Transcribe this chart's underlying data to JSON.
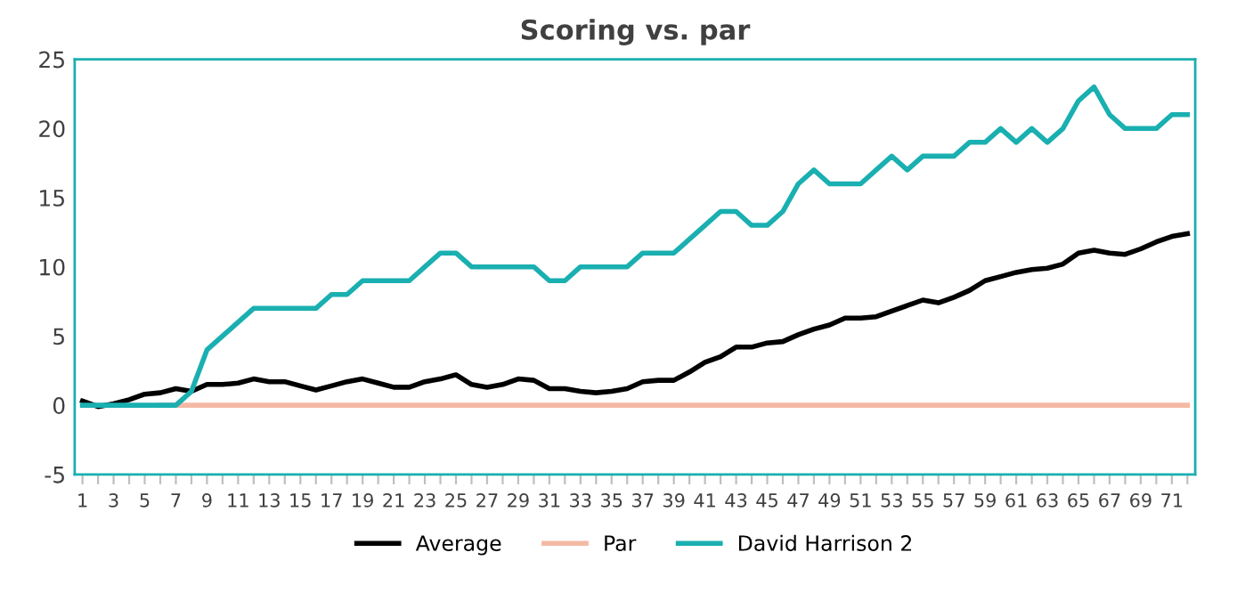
{
  "chart_data": {
    "type": "line",
    "title": "Scoring vs. par",
    "categories": [
      "1",
      null,
      "3",
      null,
      "5",
      null,
      "7",
      null,
      "9",
      null,
      "11",
      null,
      "13",
      null,
      "15",
      null,
      "17",
      null,
      "19",
      null,
      "21",
      null,
      "23",
      null,
      "25",
      null,
      "27",
      null,
      "29",
      null,
      "31",
      null,
      "33",
      null,
      "35",
      null,
      "37",
      null,
      "39",
      null,
      "41",
      null,
      "43",
      null,
      "45",
      null,
      "47",
      null,
      "49",
      null,
      "51",
      null,
      "53",
      null,
      "55",
      null,
      "57",
      null,
      "59",
      null,
      "61",
      null,
      "63",
      null,
      "65",
      null,
      "67",
      null,
      "69",
      null,
      "71",
      null
    ],
    "series": [
      {
        "name": "Average",
        "color": "#000000",
        "values": [
          0.3,
          -0.1,
          0.1,
          0.4,
          0.8,
          0.9,
          1.2,
          1.0,
          1.5,
          1.5,
          1.6,
          1.9,
          1.7,
          1.7,
          1.4,
          1.1,
          1.4,
          1.7,
          1.9,
          1.6,
          1.3,
          1.3,
          1.7,
          1.9,
          2.2,
          1.5,
          1.3,
          1.5,
          1.9,
          1.8,
          1.2,
          1.2,
          1.0,
          0.9,
          1.0,
          1.2,
          1.7,
          1.8,
          1.8,
          2.4,
          3.1,
          3.5,
          4.2,
          4.2,
          4.5,
          4.6,
          5.1,
          5.5,
          5.8,
          6.3,
          6.3,
          6.4,
          6.8,
          7.2,
          7.6,
          7.4,
          7.8,
          8.3,
          9.0,
          9.3,
          9.6,
          9.8,
          9.9,
          10.2,
          11.0,
          11.2,
          11.0,
          10.9,
          11.3,
          11.8,
          12.2,
          12.4
        ]
      },
      {
        "name": "Par",
        "color": "#f4b9a4",
        "values": [
          null,
          null,
          null,
          null,
          null,
          0,
          0,
          0,
          0,
          0,
          0,
          0,
          0,
          0,
          0,
          0,
          0,
          0,
          0,
          0,
          0,
          0,
          0,
          0,
          0,
          0,
          0,
          0,
          0,
          0,
          0,
          0,
          0,
          0,
          0,
          0,
          0,
          0,
          0,
          0,
          0,
          0,
          0,
          0,
          0,
          0,
          0,
          0,
          0,
          0,
          0,
          0,
          0,
          0,
          0,
          0,
          0,
          0,
          0,
          0,
          0,
          0,
          0,
          0,
          0,
          0,
          0,
          0,
          0,
          0,
          0,
          0
        ]
      },
      {
        "name": "David Harrison 2",
        "color": "#1aafb0",
        "values": [
          0,
          0,
          0,
          0,
          0,
          0,
          0,
          1,
          4,
          5,
          6,
          7,
          7,
          7,
          7,
          7,
          8,
          8,
          9,
          9,
          9,
          9,
          10,
          11,
          11,
          10,
          10,
          10,
          10,
          10,
          9,
          9,
          10,
          10,
          10,
          10,
          11,
          11,
          11,
          12,
          13,
          14,
          14,
          13,
          13,
          14,
          16,
          17,
          16,
          16,
          16,
          17,
          18,
          17,
          18,
          18,
          18,
          19,
          19,
          20,
          19,
          20,
          19,
          20,
          22,
          23,
          21,
          20,
          20,
          20,
          21,
          21
        ]
      }
    ],
    "ylim": [
      -5,
      25
    ],
    "yticks": [
      -5,
      0,
      5,
      10,
      15,
      20,
      25
    ],
    "grid": false,
    "legend": "bottom",
    "marker": "none",
    "line_style": "solid"
  }
}
